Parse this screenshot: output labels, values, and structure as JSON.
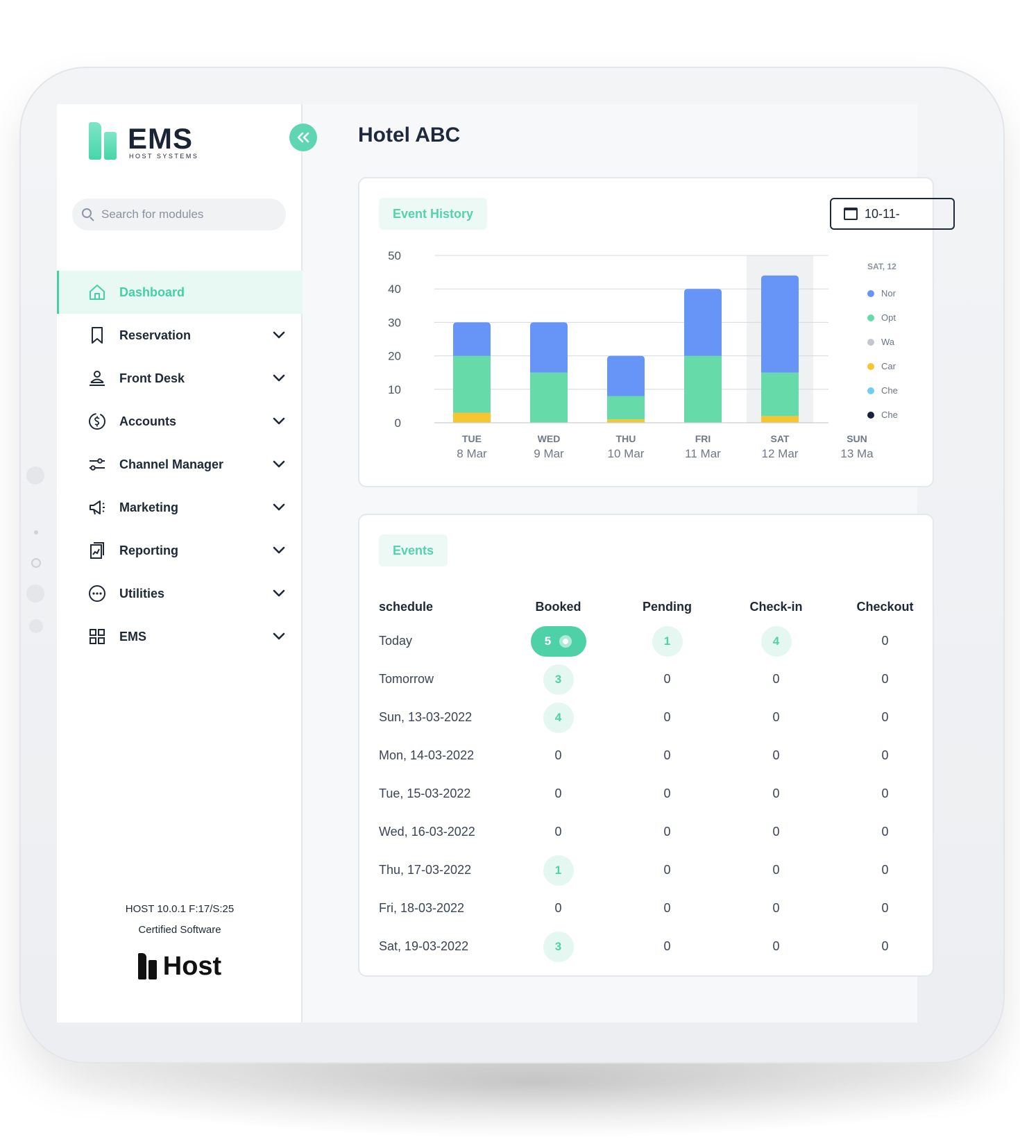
{
  "app": {
    "brand": "EMS",
    "brand_sub": "HOST SYSTEMS",
    "collapse_label": "«"
  },
  "search": {
    "placeholder": "Search for modules"
  },
  "sidebar": {
    "items": [
      {
        "label": "Dashboard",
        "icon": "home-icon",
        "active": true
      },
      {
        "label": "Reservation",
        "icon": "bookmark-icon"
      },
      {
        "label": "Front Desk",
        "icon": "bell-person-icon"
      },
      {
        "label": "Accounts",
        "icon": "dollar-circle-icon"
      },
      {
        "label": "Channel Manager",
        "icon": "sliders-icon"
      },
      {
        "label": "Marketing",
        "icon": "megaphone-icon"
      },
      {
        "label": "Reporting",
        "icon": "report-icon"
      },
      {
        "label": "Utilities",
        "icon": "more-circle-icon"
      },
      {
        "label": "EMS",
        "icon": "grid-icon"
      }
    ],
    "footer": {
      "version": "HOST 10.0.1 F:17/S:25",
      "certified": "Certified Software",
      "host_logo": "Host"
    }
  },
  "main": {
    "title": "Hotel ABC",
    "history": {
      "pill": "Event History",
      "date_value": "10-11-"
    },
    "events": {
      "pill": "Events",
      "headers": [
        "schedule",
        "Booked",
        "Pending",
        "Check-in",
        "Checkout"
      ],
      "rows": [
        {
          "schedule": "Today",
          "booked": "5",
          "pending": "1",
          "checkin": "4",
          "checkout": "0"
        },
        {
          "schedule": "Tomorrow",
          "booked": "3",
          "pending": "0",
          "checkin": "0",
          "checkout": "0"
        },
        {
          "schedule": "Sun, 13-03-2022",
          "booked": "4",
          "pending": "0",
          "checkin": "0",
          "checkout": "0"
        },
        {
          "schedule": "Mon, 14-03-2022",
          "booked": "0",
          "pending": "0",
          "checkin": "0",
          "checkout": "0"
        },
        {
          "schedule": "Tue, 15-03-2022",
          "booked": "0",
          "pending": "0",
          "checkin": "0",
          "checkout": "0"
        },
        {
          "schedule": "Wed, 16-03-2022",
          "booked": "0",
          "pending": "0",
          "checkin": "0",
          "checkout": "0"
        },
        {
          "schedule": "Thu, 17-03-2022",
          "booked": "1",
          "pending": "0",
          "checkin": "0",
          "checkout": "0"
        },
        {
          "schedule": "Fri, 18-03-2022",
          "booked": "0",
          "pending": "0",
          "checkin": "0",
          "checkout": "0"
        },
        {
          "schedule": "Sat, 19-03-2022",
          "booked": "3",
          "pending": "0",
          "checkin": "0",
          "checkout": "0"
        }
      ]
    }
  },
  "colors": {
    "accent": "#4fd1a8",
    "blue": "#6694f7",
    "green": "#66dba9",
    "yellow": "#f7c530",
    "gray": "#c3c7cd",
    "cyan": "#70cdf5",
    "navy": "#16233b"
  },
  "chart_data": {
    "type": "bar",
    "stacked": true,
    "categories": [
      {
        "day": "TUE",
        "date": "8 Mar"
      },
      {
        "day": "WED",
        "date": "9 Mar"
      },
      {
        "day": "THU",
        "date": "10 Mar"
      },
      {
        "day": "FRI",
        "date": "11 Mar"
      },
      {
        "day": "SAT",
        "date": "12 Mar"
      },
      {
        "day": "SUN",
        "date": "13 Ma"
      }
    ],
    "series": [
      {
        "color": "#f7c530",
        "values": [
          3,
          0,
          1,
          0,
          2,
          0
        ]
      },
      {
        "color": "#66dba9",
        "values": [
          17,
          15,
          7,
          20,
          13,
          0
        ]
      },
      {
        "color": "#6694f7",
        "values": [
          10,
          15,
          12,
          20,
          29,
          0
        ]
      }
    ],
    "highlight_index": 4,
    "ylim": [
      0,
      50
    ],
    "yticks": [
      0,
      10,
      20,
      30,
      40,
      50
    ],
    "grid": true,
    "legend": {
      "title": "SAT, 12",
      "position": "right",
      "items": [
        {
          "label": "Nor",
          "color": "#6694f7"
        },
        {
          "label": "Opt",
          "color": "#66dba9"
        },
        {
          "label": "Wa",
          "color": "#c3c7cd"
        },
        {
          "label": "Car",
          "color": "#f7c530"
        },
        {
          "label": "Che",
          "color": "#70cdf5"
        },
        {
          "label": "Che",
          "color": "#16233b"
        }
      ]
    }
  }
}
